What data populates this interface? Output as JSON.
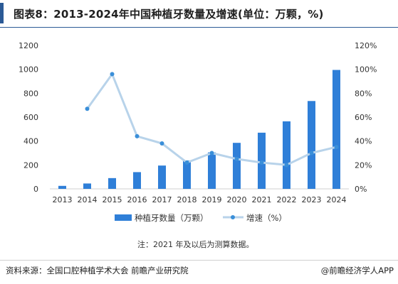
{
  "title": "图表8：2013-2024年中国种植牙数量及增速(单位：万颗，%)",
  "footer": {
    "source": "资料来源：全国口腔种植学术大会 前瞻产业研究院",
    "brand": "@前瞻经济学人APP"
  },
  "colors": {
    "accent": "#2b5a96",
    "bar": "#2f7fd8",
    "line": "#b8d3ea",
    "marker": "#3a8fd9"
  },
  "chart_data": {
    "type": "bar",
    "categories": [
      "2013",
      "2014",
      "2015",
      "2016",
      "2017",
      "2018",
      "2019",
      "2020",
      "2021",
      "2022",
      "2023",
      "2024"
    ],
    "series": [
      {
        "name": "种植牙数量（万颗）",
        "type": "bar",
        "axis": "left",
        "values": [
          25,
          45,
          90,
          140,
          195,
          238,
          305,
          385,
          470,
          565,
          735,
          995
        ]
      },
      {
        "name": "增速（%）",
        "type": "line",
        "axis": "right",
        "values": [
          null,
          67,
          96,
          44,
          38,
          22,
          30,
          25,
          22,
          20,
          30,
          35
        ]
      }
    ],
    "y_left": {
      "lim": [
        0,
        1200
      ],
      "ticks": [
        "0",
        "200",
        "400",
        "600",
        "800",
        "1000",
        "1200"
      ]
    },
    "y_right": {
      "lim": [
        0,
        120
      ],
      "ticks": [
        "0%",
        "20%",
        "40%",
        "60%",
        "80%",
        "100%",
        "120%"
      ]
    },
    "grid": false,
    "legend_position": "bottom",
    "annotation": "注：2021 年及以后为测算数据。"
  }
}
